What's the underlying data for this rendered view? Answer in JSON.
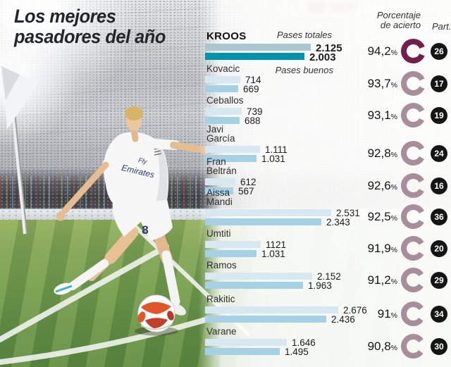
{
  "title": {
    "line1": "Los mejores",
    "line2": "pasadores del año"
  },
  "column_headers": {
    "accuracy_line1": "Porcentaje",
    "accuracy_line2": "de acierto",
    "participation": "Part.",
    "percent_sign": "%"
  },
  "series_labels": {
    "totals": "Pases totales",
    "good": "Pases buenos"
  },
  "photo": {
    "jersey_sponsor_line1": "Fly",
    "jersey_sponsor_line2": "Emirates",
    "shirt_number": "8"
  },
  "colors": {
    "bar_total": "#d7e8f1",
    "bar_good": "#a6d0e4",
    "bar_total_highlight": "#a9c7cd",
    "bar_good_highlight": "#0093a9",
    "donut": "#a78e9a",
    "donut_highlight": "#71204b",
    "badge_bg": "#151515",
    "badge_text": "#ffffff"
  },
  "chart_data": {
    "type": "bar",
    "orientation": "horizontal",
    "series_labels": [
      "Pases totales",
      "Pases buenos"
    ],
    "max_value": 2676,
    "players": [
      {
        "name": "KROOS",
        "total": "2.125",
        "good": "2.003",
        "accuracy_pct": "94,2",
        "participation": "26",
        "highlight": true
      },
      {
        "name": "Kovacic",
        "total": "714",
        "good": "669",
        "accuracy_pct": "93,7",
        "participation": "17"
      },
      {
        "name": "Ceballos",
        "total": "739",
        "good": "688",
        "accuracy_pct": "93,1",
        "participation": "19"
      },
      {
        "name": "Javi García",
        "total": "1.111",
        "good": "1.031",
        "accuracy_pct": "92,8",
        "participation": "24"
      },
      {
        "name": "Fran Beltrán",
        "total": "612",
        "good": "567",
        "accuracy_pct": "92,6",
        "participation": "16"
      },
      {
        "name": "Aissa Mandi",
        "total": "2.531",
        "good": "2.343",
        "accuracy_pct": "92,5",
        "participation": "36"
      },
      {
        "name": "Umtiti",
        "total": "1121",
        "good": "1.031",
        "accuracy_pct": "91,9",
        "participation": "20"
      },
      {
        "name": "Ramos",
        "total": "2.152",
        "good": "1.963",
        "accuracy_pct": "91,2",
        "participation": "29"
      },
      {
        "name": "Rakitic",
        "total": "2.676",
        "good": "2.436",
        "accuracy_pct": "91",
        "participation": "34"
      },
      {
        "name": "Varane",
        "total": "1.646",
        "good": "1.495",
        "accuracy_pct": "90,8",
        "participation": "30"
      }
    ]
  }
}
